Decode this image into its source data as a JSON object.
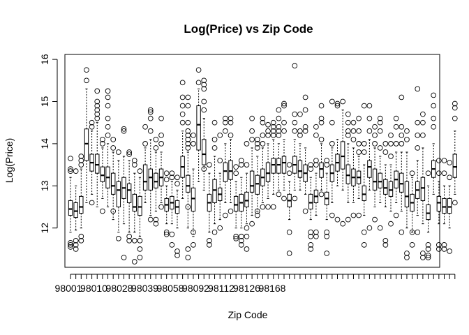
{
  "chart_data": {
    "type": "boxplot",
    "title": "Log(Price) vs Zip Code",
    "xlabel": "Zip Code",
    "ylabel": "Log(Price)",
    "ylim": [
      11.0,
      16.05
    ],
    "y_ticks": [
      12,
      13,
      14,
      15,
      16
    ],
    "x_tick_labels": [
      "98001",
      "98010",
      "98028",
      "98039",
      "98058",
      "98092",
      "98112",
      "98126",
      "98168"
    ],
    "x_tick_label_positions": [
      1,
      6,
      11,
      16,
      21,
      26,
      31,
      36,
      41
    ],
    "grid": false,
    "box_stats_order": [
      "whisker_low",
      "q1",
      "median",
      "q3",
      "whisker_high"
    ],
    "boxes": [
      {
        "stats": [
          11.9,
          12.3,
          12.45,
          12.65,
          13.2
        ],
        "outliers": [
          11.55,
          11.6,
          11.65,
          13.35,
          13.4,
          13.65
        ]
      },
      {
        "stats": [
          11.95,
          12.25,
          12.4,
          12.6,
          13.0
        ],
        "outliers": [
          11.5,
          11.6,
          11.7,
          13.35
        ]
      },
      {
        "stats": [
          12.0,
          12.35,
          12.5,
          12.75,
          13.4
        ],
        "outliers": [
          11.7,
          11.8,
          13.5,
          13.6,
          13.7
        ]
      },
      {
        "stats": [
          12.6,
          13.6,
          14.0,
          14.35,
          15.3
        ],
        "outliers": [
          15.5,
          15.75
        ]
      },
      {
        "stats": [
          12.8,
          13.35,
          13.55,
          13.75,
          14.3
        ],
        "outliers": [
          14.4,
          14.5,
          12.6
        ]
      },
      {
        "stats": [
          12.5,
          13.3,
          13.5,
          13.75,
          14.5
        ],
        "outliers": [
          14.6,
          14.7,
          14.8,
          14.9,
          15.0,
          15.25
        ]
      },
      {
        "stats": [
          12.7,
          13.1,
          13.25,
          13.45,
          13.9
        ],
        "outliers": [
          12.4,
          14.0,
          14.1
        ]
      },
      {
        "stats": [
          12.5,
          12.95,
          13.2,
          13.45,
          14.0
        ],
        "outliers": [
          14.2,
          14.4,
          14.6,
          14.9,
          15.1,
          15.25
        ]
      },
      {
        "stats": [
          12.2,
          12.8,
          13.0,
          13.3,
          13.8
        ],
        "outliers": [
          12.4,
          13.9,
          14.1
        ]
      },
      {
        "stats": [
          11.9,
          12.5,
          12.9,
          13.1,
          13.6
        ],
        "outliers": [
          11.75,
          13.8
        ]
      },
      {
        "stats": [
          12.1,
          12.7,
          12.95,
          13.2,
          13.7
        ],
        "outliers": [
          11.3,
          14.3,
          14.35
        ]
      },
      {
        "stats": [
          11.9,
          12.6,
          12.9,
          13.05,
          13.6
        ],
        "outliers": [
          11.7,
          11.8,
          13.75,
          13.8
        ]
      },
      {
        "stats": [
          11.9,
          12.4,
          12.5,
          12.8,
          13.3
        ],
        "outliers": [
          11.2,
          11.7,
          13.5,
          13.6
        ]
      },
      {
        "stats": [
          11.8,
          12.3,
          12.5,
          12.75,
          13.2
        ],
        "outliers": [
          11.3,
          11.5,
          11.7,
          13.35
        ]
      },
      {
        "stats": [
          12.6,
          12.9,
          13.1,
          13.5,
          13.9
        ],
        "outliers": [
          14.0,
          14.4
        ]
      },
      {
        "stats": [
          12.3,
          12.9,
          13.2,
          13.4,
          14.1
        ],
        "outliers": [
          12.2,
          14.3,
          14.6,
          14.75,
          14.8
        ]
      },
      {
        "stats": [
          12.4,
          12.95,
          13.1,
          13.3,
          13.8
        ],
        "outliers": [
          12.2,
          12.1,
          13.9,
          14.1
        ]
      },
      {
        "stats": [
          12.6,
          13.0,
          13.2,
          13.4,
          13.8
        ],
        "outliers": [
          12.5,
          14.0,
          14.2,
          14.6
        ]
      },
      {
        "stats": [
          12.1,
          12.4,
          12.55,
          12.7,
          13.0
        ],
        "outliers": [
          11.85,
          11.9,
          13.15,
          13.3
        ]
      },
      {
        "stats": [
          12.1,
          12.45,
          12.6,
          12.75,
          13.1
        ],
        "outliers": [
          11.6,
          11.85,
          13.2,
          13.3
        ]
      },
      {
        "stats": [
          12.0,
          12.35,
          12.5,
          12.65,
          12.9
        ],
        "outliers": [
          11.35,
          11.45,
          13.05,
          13.2
        ]
      },
      {
        "stats": [
          12.7,
          13.2,
          13.45,
          13.7,
          14.3
        ],
        "outliers": [
          14.5,
          14.7,
          14.9,
          15.1,
          15.45
        ]
      },
      {
        "stats": [
          12.0,
          12.85,
          13.0,
          13.25,
          13.8
        ],
        "outliers": [
          11.3,
          11.5,
          12.5,
          13.9,
          14.0,
          14.1,
          14.2,
          14.3,
          14.5,
          14.9,
          15.1
        ]
      },
      {
        "stats": [
          11.8,
          12.4,
          12.7,
          12.95,
          13.4
        ],
        "outliers": [
          11.6,
          11.9,
          14.0,
          14.2
        ]
      },
      {
        "stats": [
          13.1,
          13.85,
          14.45,
          14.9,
          15.3
        ],
        "outliers": [
          15.45,
          15.75
        ]
      },
      {
        "stats": [
          12.9,
          13.5,
          13.75,
          14.1,
          14.6
        ],
        "outliers": [
          13.4,
          14.8,
          15.0,
          15.3,
          15.4,
          15.5
        ]
      },
      {
        "stats": [
          11.9,
          12.4,
          12.6,
          12.8,
          13.3
        ],
        "outliers": [
          11.6,
          11.7,
          13.5
        ]
      },
      {
        "stats": [
          12.1,
          12.6,
          12.9,
          13.15,
          13.7
        ],
        "outliers": [
          11.9,
          13.9,
          14.1,
          14.5
        ]
      },
      {
        "stats": [
          12.2,
          12.65,
          12.8,
          12.95,
          13.3
        ],
        "outliers": [
          12.0,
          13.6,
          14.2
        ]
      },
      {
        "stats": [
          12.6,
          13.1,
          13.35,
          13.55,
          14.0
        ],
        "outliers": [
          12.3,
          14.3,
          14.5,
          14.6
        ]
      },
      {
        "stats": [
          12.6,
          13.15,
          13.35,
          13.6,
          14.1
        ],
        "outliers": [
          12.4,
          14.2,
          14.5,
          14.6
        ]
      },
      {
        "stats": [
          12.0,
          12.4,
          12.55,
          12.75,
          13.1
        ],
        "outliers": [
          11.75,
          11.8,
          13.3,
          13.45
        ]
      },
      {
        "stats": [
          12.0,
          12.4,
          12.6,
          12.8,
          13.2
        ],
        "outliers": [
          11.6,
          11.7,
          11.8,
          13.5,
          13.6
        ]
      },
      {
        "stats": [
          12.1,
          12.5,
          12.65,
          12.85,
          13.3
        ],
        "outliers": [
          11.5,
          11.8,
          12.0,
          13.5,
          14.0
        ]
      },
      {
        "stats": [
          12.3,
          12.85,
          13.0,
          13.35,
          13.9
        ],
        "outliers": [
          12.1,
          14.1,
          14.3,
          14.6
        ]
      },
      {
        "stats": [
          12.4,
          12.8,
          13.05,
          13.25,
          13.7
        ],
        "outliers": [
          12.3,
          12.4,
          13.9,
          14.0,
          14.1
        ]
      },
      {
        "stats": [
          12.6,
          13.0,
          13.2,
          13.4,
          13.9
        ],
        "outliers": [
          12.5,
          14.0,
          14.2,
          14.5,
          14.6
        ]
      },
      {
        "stats": [
          12.7,
          13.1,
          13.3,
          13.55,
          14.0
        ],
        "outliers": [
          12.5,
          14.2,
          14.3,
          14.45
        ]
      },
      {
        "stats": [
          12.8,
          13.3,
          13.5,
          13.65,
          14.1
        ],
        "outliers": [
          12.5,
          14.2,
          14.3,
          14.4,
          14.5
        ]
      },
      {
        "stats": [
          12.9,
          13.3,
          13.5,
          13.65,
          14.0
        ],
        "outliers": [
          12.8,
          14.2,
          14.3,
          14.4,
          14.6,
          14.8
        ]
      },
      {
        "stats": [
          12.9,
          13.3,
          13.55,
          13.7,
          14.1
        ],
        "outliers": [
          12.7,
          14.3,
          14.5,
          14.9,
          14.95
        ]
      },
      {
        "stats": [
          12.2,
          12.5,
          12.65,
          12.8,
          13.1
        ],
        "outliers": [
          11.4,
          11.9,
          13.3,
          13.5
        ]
      },
      {
        "stats": [
          12.9,
          13.3,
          13.5,
          13.7,
          14.1
        ],
        "outliers": [
          12.7,
          14.3,
          14.5,
          14.7,
          15.85
        ]
      },
      {
        "stats": [
          12.9,
          13.2,
          13.35,
          13.6,
          14.0
        ],
        "outliers": [
          14.2,
          14.3,
          14.7
        ]
      },
      {
        "stats": [
          12.8,
          13.1,
          13.3,
          13.5,
          13.9
        ],
        "outliers": [
          12.4,
          14.3,
          14.4,
          14.8,
          15.1
        ]
      },
      {
        "stats": [
          12.2,
          12.45,
          12.6,
          12.8,
          13.2
        ],
        "outliers": [
          11.5,
          11.6,
          11.8,
          11.9,
          13.4,
          13.5
        ]
      },
      {
        "stats": [
          12.3,
          12.6,
          12.75,
          12.9,
          13.3
        ],
        "outliers": [
          11.8,
          11.9,
          13.5,
          13.6,
          14.2,
          14.4
        ]
      },
      {
        "stats": [
          12.9,
          13.2,
          13.4,
          13.55,
          14.0
        ],
        "outliers": [
          12.8,
          14.1,
          14.5,
          14.6,
          14.9
        ]
      },
      {
        "stats": [
          12.2,
          12.55,
          12.7,
          12.85,
          13.3
        ],
        "outliers": [
          11.4,
          11.8,
          11.9,
          13.5,
          13.6
        ]
      },
      {
        "stats": [
          12.6,
          13.1,
          13.3,
          13.5,
          13.9
        ],
        "outliers": [
          12.3,
          14.0,
          14.5,
          15.0
        ]
      },
      {
        "stats": [
          13.0,
          13.35,
          13.55,
          13.75,
          14.1
        ],
        "outliers": [
          12.2,
          14.9,
          14.95
        ]
      },
      {
        "stats": [
          12.9,
          13.4,
          13.7,
          14.05,
          14.8
        ],
        "outliers": [
          12.1,
          15.0
        ]
      },
      {
        "stats": [
          12.6,
          13.05,
          13.25,
          13.5,
          14.0
        ],
        "outliers": [
          12.2,
          14.2,
          14.3,
          14.5,
          14.7
        ]
      },
      {
        "stats": [
          12.6,
          13.0,
          13.2,
          13.4,
          13.9
        ],
        "outliers": [
          12.3,
          14.1,
          14.3,
          14.5
        ]
      },
      {
        "stats": [
          12.7,
          13.05,
          13.2,
          13.35,
          13.7
        ],
        "outliers": [
          12.3,
          13.8,
          14.0,
          14.3,
          14.6
        ]
      },
      {
        "stats": [
          12.3,
          12.65,
          12.8,
          13.0,
          13.5
        ],
        "outliers": [
          11.9,
          11.6,
          13.8,
          14.0,
          14.9
        ]
      },
      {
        "stats": [
          12.9,
          13.2,
          13.45,
          13.6,
          14.1
        ],
        "outliers": [
          12.0,
          14.3,
          14.6,
          14.9
        ]
      },
      {
        "stats": [
          12.5,
          12.9,
          13.1,
          13.4,
          13.9
        ],
        "outliers": [
          12.2,
          14.0,
          14.2,
          14.4
        ]
      },
      {
        "stats": [
          12.6,
          12.95,
          13.1,
          13.3,
          13.7
        ],
        "outliers": [
          12.0,
          13.9,
          14.3,
          14.5,
          14.6
        ]
      },
      {
        "stats": [
          12.5,
          12.8,
          12.95,
          13.15,
          13.5
        ],
        "outliers": [
          11.6,
          11.7,
          13.8,
          14.0
        ]
      },
      {
        "stats": [
          12.4,
          12.75,
          12.9,
          13.1,
          13.5
        ],
        "outliers": [
          12.1,
          13.7,
          14.0,
          14.2
        ]
      },
      {
        "stats": [
          12.6,
          12.95,
          13.15,
          13.35,
          13.8
        ],
        "outliers": [
          12.3,
          14.0,
          14.4,
          14.6
        ]
      },
      {
        "stats": [
          12.4,
          12.85,
          13.05,
          13.3,
          13.8
        ],
        "outliers": [
          11.9,
          14.0,
          14.2,
          14.4,
          15.1
        ]
      },
      {
        "stats": [
          12.0,
          12.5,
          12.75,
          13.1,
          13.8
        ],
        "outliers": [
          11.3,
          11.4,
          14.1,
          14.3
        ]
      },
      {
        "stats": [
          11.9,
          12.4,
          12.6,
          12.8,
          13.2
        ],
        "outliers": [
          11.6,
          11.9,
          13.3
        ]
      },
      {
        "stats": [
          12.3,
          12.7,
          12.9,
          13.1,
          13.6
        ],
        "outliers": [
          11.9,
          13.9,
          14.2,
          14.5,
          15.3
        ]
      },
      {
        "stats": [
          12.1,
          12.65,
          12.95,
          13.2,
          13.9
        ],
        "outliers": [
          11.3,
          11.4,
          14.2,
          14.5,
          14.7
        ]
      },
      {
        "stats": [
          11.9,
          12.2,
          12.35,
          12.55,
          13.0
        ],
        "outliers": [
          11.3,
          11.35,
          11.5,
          11.6,
          13.3
        ]
      },
      {
        "stats": [
          12.8,
          13.2,
          13.4,
          13.6,
          14.0
        ],
        "outliers": [
          14.4,
          14.6,
          14.9,
          15.15
        ]
      },
      {
        "stats": [
          12.1,
          12.4,
          12.6,
          12.75,
          13.1
        ],
        "outliers": [
          11.5,
          11.6,
          13.3,
          13.6
        ]
      },
      {
        "stats": [
          12.1,
          12.35,
          12.5,
          12.7,
          13.0
        ],
        "outliers": [
          11.5,
          11.6,
          13.3,
          13.6
        ]
      },
      {
        "stats": [
          12.0,
          12.35,
          12.5,
          12.7,
          13.0
        ],
        "outliers": [
          11.45,
          13.2,
          13.55
        ]
      },
      {
        "stats": [
          12.8,
          13.2,
          13.45,
          13.75,
          14.3
        ],
        "outliers": [
          12.6,
          14.6,
          14.85,
          14.95
        ]
      }
    ]
  }
}
